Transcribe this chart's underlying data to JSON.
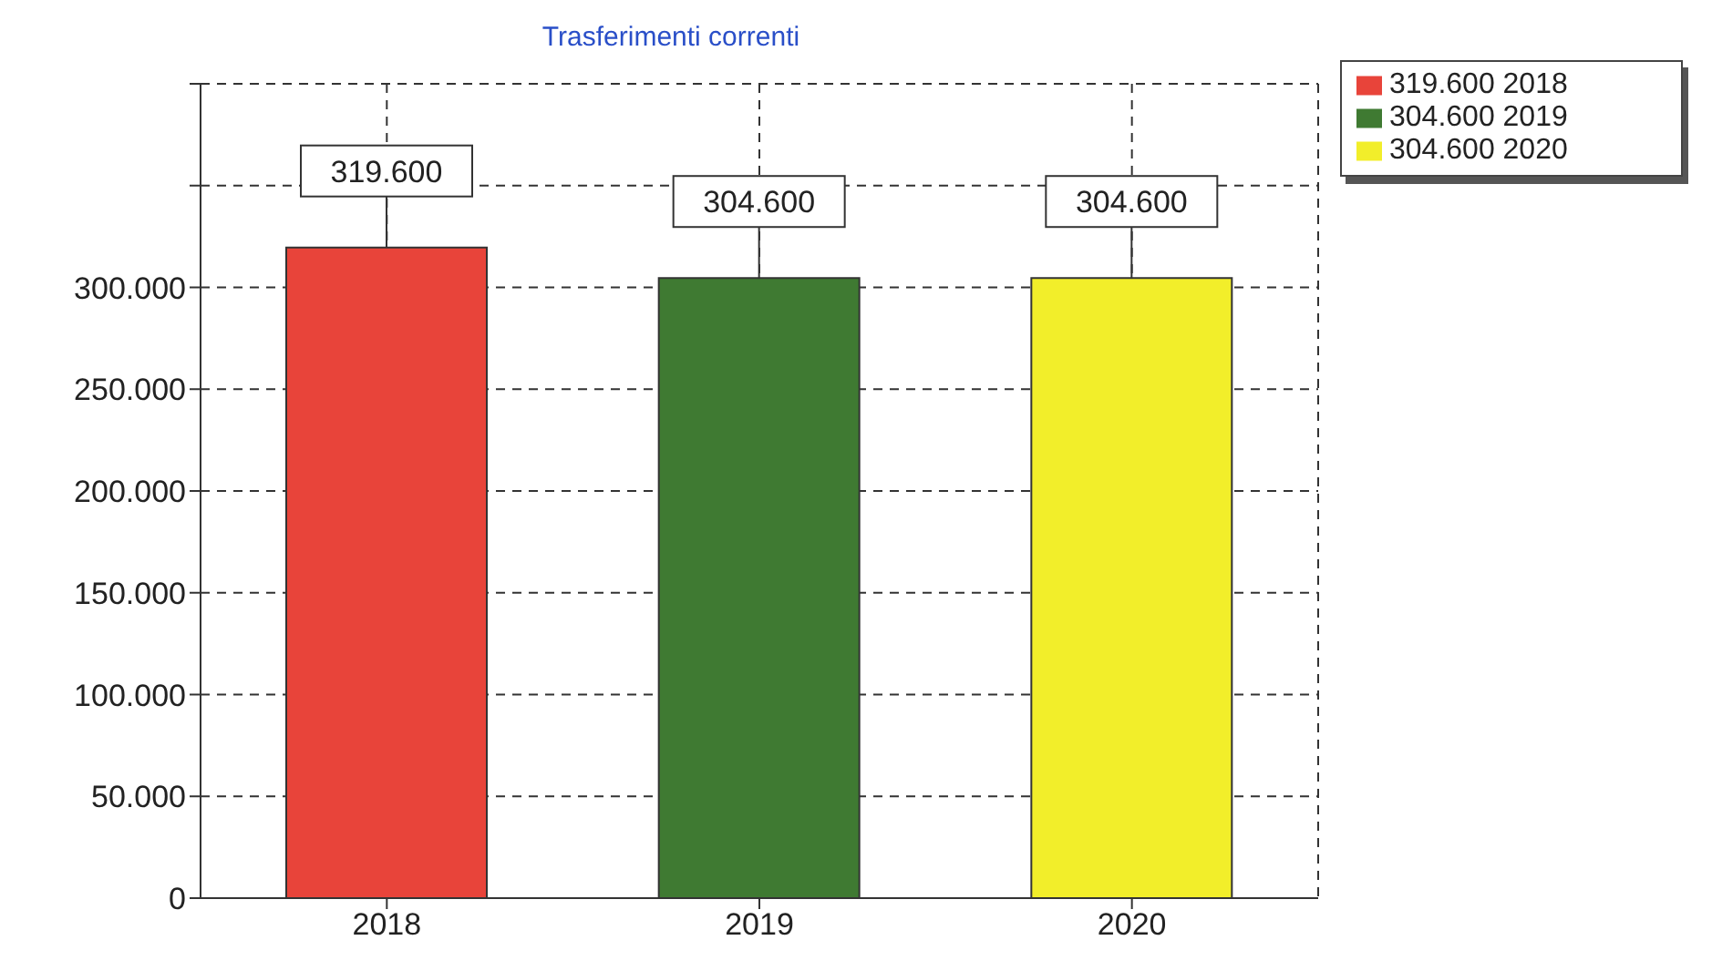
{
  "chart_data": {
    "type": "bar",
    "title": "Trasferimenti correnti",
    "categories": [
      "2018",
      "2019",
      "2020"
    ],
    "stacked": true,
    "series": [
      {
        "name": "319.600 2018",
        "color": "#e8443a",
        "values": [
          319600,
          null,
          null
        ],
        "value_labels": [
          "319.600",
          null,
          null
        ]
      },
      {
        "name": "304.600 2019",
        "color": "#3f7a32",
        "values": [
          null,
          304600,
          null
        ],
        "value_labels": [
          null,
          "304.600",
          null
        ]
      },
      {
        "name": "304.600 2020",
        "color": "#f2ee2a",
        "values": [
          null,
          null,
          304600
        ],
        "value_labels": [
          null,
          null,
          "304.600"
        ]
      }
    ],
    "ylim": [
      0,
      400000
    ],
    "yticks": [
      {
        "value": 0,
        "label": "0"
      },
      {
        "value": 50000,
        "label": "50.000"
      },
      {
        "value": 100000,
        "label": "100.000"
      },
      {
        "value": 150000,
        "label": "150.000"
      },
      {
        "value": 200000,
        "label": "200.000"
      },
      {
        "value": 250000,
        "label": "250.000"
      },
      {
        "value": 300000,
        "label": "300.000"
      },
      {
        "value": 350000,
        "label": null
      },
      {
        "value": 400000,
        "label": null
      }
    ],
    "grid": true,
    "legend": "top right"
  }
}
